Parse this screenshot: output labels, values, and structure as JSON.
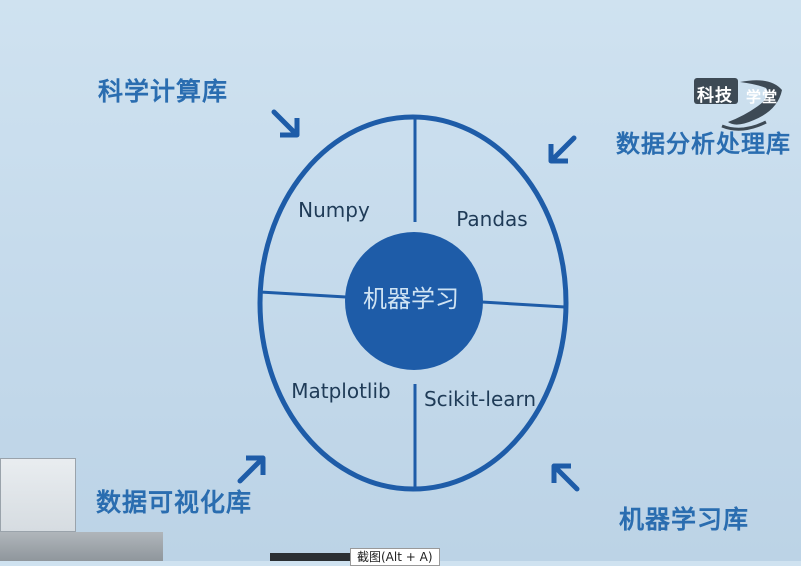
{
  "diagram": {
    "center_label": "机器学习",
    "quadrants": {
      "top_left": "Numpy",
      "top_right": "Pandas",
      "bottom_left": "Matplotlib",
      "bottom_right": "Scikit-learn"
    }
  },
  "categories": {
    "top_left": "科学计算库",
    "top_right": "数据分析处理库",
    "bottom_left": "数据可视化库",
    "bottom_right": "机器学习库"
  },
  "watermark": {
    "left_text": "科技",
    "right_text": "学堂"
  },
  "overlay": {
    "screenshot_tip": "截图(Alt + A)"
  },
  "colors": {
    "diagram_blue": "#1e5ca8",
    "label_blue": "#2a6db0",
    "background": "#c6dbec"
  }
}
